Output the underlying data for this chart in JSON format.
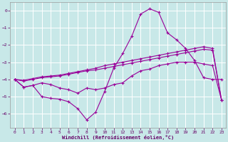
{
  "xlabel": "Windchill (Refroidissement éolien,°C)",
  "bg_color": "#c8e8e8",
  "line_color": "#990099",
  "grid_color": "#aad8d8",
  "xmin": -0.5,
  "xmax": 23.5,
  "ymin": -6.8,
  "ymax": 0.5,
  "series1_x": [
    0,
    1,
    2,
    3,
    4,
    5,
    6,
    7,
    8,
    9,
    10,
    11,
    12,
    13,
    14,
    15,
    16,
    17,
    18,
    19,
    20,
    21,
    22,
    23
  ],
  "series1_y": [
    -4.0,
    -4.45,
    -4.35,
    -5.0,
    -5.1,
    -5.15,
    -5.3,
    -5.7,
    -6.35,
    -5.9,
    -4.7,
    -3.35,
    -2.5,
    -1.5,
    -0.2,
    0.1,
    -0.1,
    -1.3,
    -1.7,
    -2.2,
    -2.9,
    -3.9,
    -4.0,
    -4.0
  ],
  "series2_x": [
    0,
    1,
    2,
    3,
    4,
    5,
    6,
    7,
    8,
    9,
    10,
    11,
    12,
    13,
    14,
    15,
    16,
    17,
    18,
    19,
    20,
    21,
    22,
    23
  ],
  "series2_y": [
    -4.0,
    -4.45,
    -4.35,
    -4.2,
    -4.3,
    -4.5,
    -4.6,
    -4.8,
    -4.5,
    -4.6,
    -4.5,
    -4.3,
    -4.2,
    -3.8,
    -3.5,
    -3.4,
    -3.2,
    -3.1,
    -3.0,
    -3.0,
    -3.0,
    -3.1,
    -3.2,
    -5.2
  ],
  "series3_x": [
    0,
    1,
    2,
    3,
    4,
    5,
    6,
    7,
    8,
    9,
    10,
    11,
    12,
    13,
    14,
    15,
    16,
    17,
    18,
    19,
    20,
    21,
    22,
    23
  ],
  "series3_y": [
    -4.0,
    -4.1,
    -4.0,
    -3.9,
    -3.85,
    -3.8,
    -3.7,
    -3.6,
    -3.5,
    -3.45,
    -3.35,
    -3.25,
    -3.15,
    -3.05,
    -2.95,
    -2.85,
    -2.75,
    -2.65,
    -2.55,
    -2.45,
    -2.35,
    -2.25,
    -2.3,
    -5.2
  ],
  "series4_x": [
    0,
    1,
    2,
    3,
    4,
    5,
    6,
    7,
    8,
    9,
    10,
    11,
    12,
    13,
    14,
    15,
    16,
    17,
    18,
    19,
    20,
    21,
    22,
    23
  ],
  "series4_y": [
    -4.0,
    -4.05,
    -3.95,
    -3.85,
    -3.8,
    -3.75,
    -3.65,
    -3.55,
    -3.45,
    -3.35,
    -3.2,
    -3.1,
    -3.0,
    -2.9,
    -2.8,
    -2.7,
    -2.6,
    -2.5,
    -2.4,
    -2.3,
    -2.2,
    -2.1,
    -2.2,
    -5.2
  ],
  "yticks": [
    0,
    -1,
    -2,
    -3,
    -4,
    -5,
    -6
  ]
}
